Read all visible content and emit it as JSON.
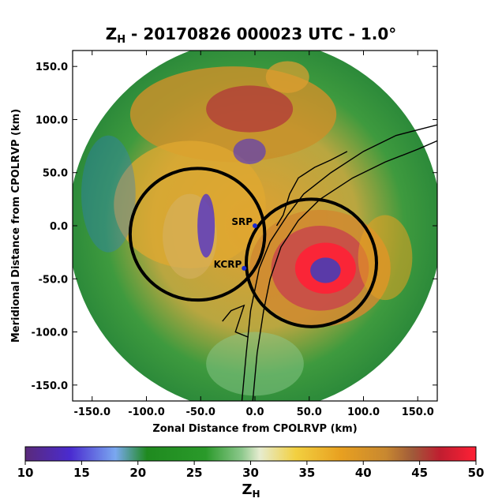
{
  "chart_data": {
    "type": "heatmap",
    "title_main": "Z",
    "title_sub": "H",
    "title_rest": " - 20170826 000023 UTC - 1.0°",
    "xlabel": "Zonal Distance from CPOLRVP (km)",
    "ylabel": "Meridional Distance from CPOLRVP (km)",
    "xlim": [
      -168,
      168
    ],
    "ylim": [
      -165,
      165
    ],
    "xticks": [
      -150,
      -100,
      -50,
      0,
      50,
      100,
      150
    ],
    "xtick_labels": [
      "-150.0",
      "-100.0",
      "-50.0",
      "0.0",
      "50.0",
      "100.0",
      "150.0"
    ],
    "yticks": [
      150,
      100,
      50,
      0,
      -50,
      -100,
      -150
    ],
    "ytick_labels": [
      "150.0",
      "100.0",
      "50.0",
      "0.0",
      "-50.0",
      "-100.0",
      "-150.0"
    ],
    "radar_range_km": 172,
    "colorbar": {
      "label_main": "Z",
      "label_sub": "H",
      "min": 10,
      "max": 50,
      "ticks": [
        10,
        15,
        20,
        25,
        30,
        35,
        40,
        45,
        50
      ],
      "tick_labels": [
        "10",
        "15",
        "20",
        "25",
        "30",
        "35",
        "40",
        "45",
        "50"
      ],
      "colors": [
        "#5a2a7a",
        "#4a2bd0",
        "#7aa8f0",
        "#1f8a1f",
        "#1a8a1a",
        "#5fb05f",
        "#e0e8c8",
        "#f2d040",
        "#e8a020",
        "#d07a28",
        "#a05a3a",
        "#c01e30",
        "#ff2035"
      ]
    },
    "rings": [
      {
        "center_x": -53,
        "center_y": -8,
        "radius": 62
      },
      {
        "center_x": 52,
        "center_y": -35,
        "radius": 60
      }
    ],
    "sites": [
      {
        "label": "SRP",
        "x": 0,
        "y": 0
      },
      {
        "label": "KCRP",
        "x": -10,
        "y": -40
      }
    ],
    "eye": {
      "x": 65,
      "y": -42
    }
  }
}
